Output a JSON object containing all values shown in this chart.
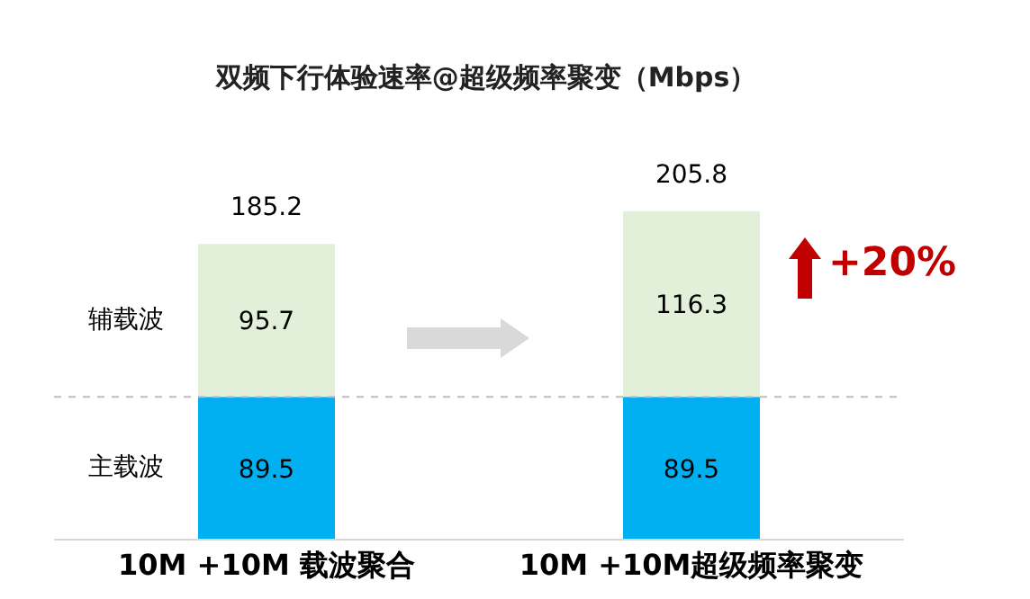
{
  "chart_data": {
    "type": "bar",
    "title": "双频下行体验速率@超级频率聚变（Mbps）",
    "categories": [
      "10M +10M 载波聚合",
      "10M +10M超级频率聚变"
    ],
    "stacked": true,
    "data_labels": true,
    "tick_labels": "x",
    "series": [
      {
        "name": "主载波",
        "color": "#00b0f0",
        "values": [
          89.5,
          89.5
        ]
      },
      {
        "name": "辅载波",
        "color": "#e2f0d9",
        "values": [
          95.7,
          116.3
        ]
      }
    ],
    "totals": [
      "185.2",
      "205.8"
    ],
    "ref_lines": [
      {
        "axis": "y",
        "value": 89.5,
        "color": "#bfbfbf",
        "line_style": "dashed"
      }
    ],
    "annotations": [
      "+20%"
    ]
  }
}
